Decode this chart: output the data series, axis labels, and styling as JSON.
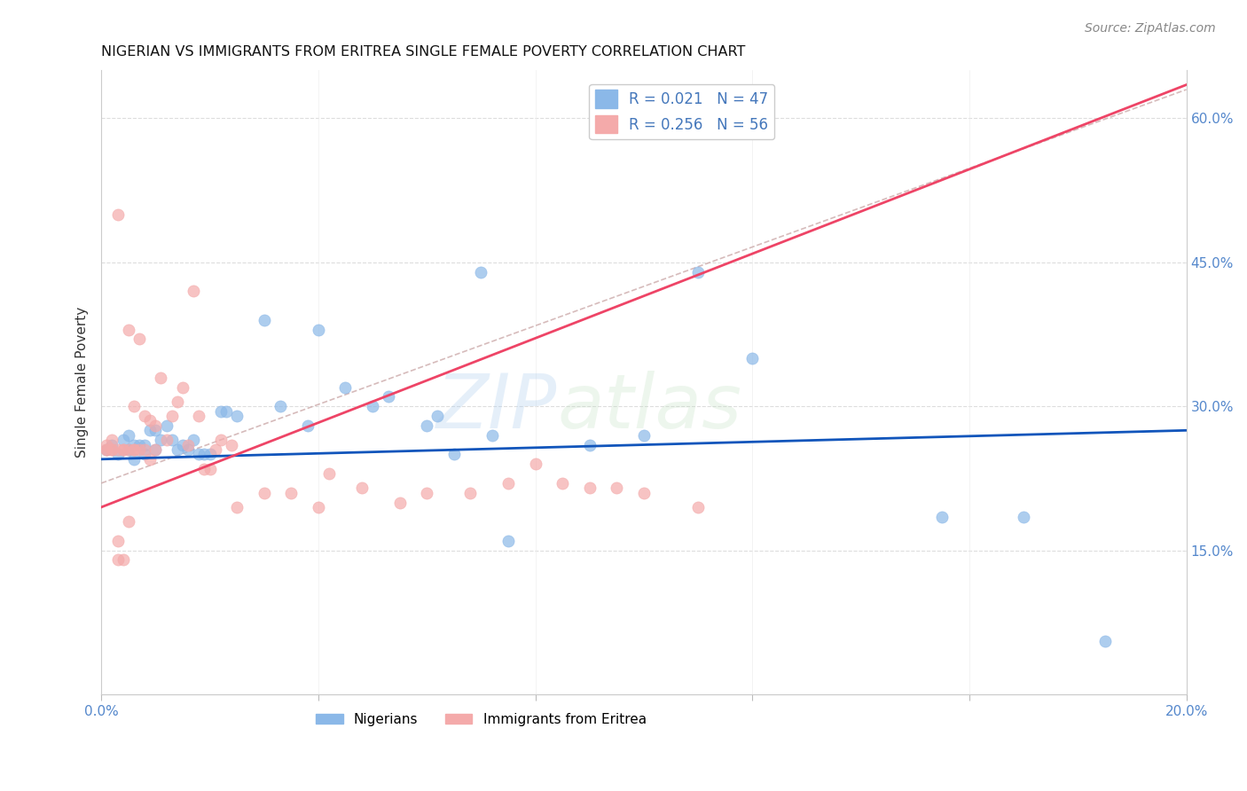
{
  "title": "NIGERIAN VS IMMIGRANTS FROM ERITREA SINGLE FEMALE POVERTY CORRELATION CHART",
  "source": "Source: ZipAtlas.com",
  "ylabel": "Single Female Poverty",
  "xlim": [
    0.0,
    0.2
  ],
  "ylim": [
    0.0,
    0.65
  ],
  "yticks_right": [
    0.15,
    0.3,
    0.45,
    0.6
  ],
  "ytick_labels_right": [
    "15.0%",
    "30.0%",
    "45.0%",
    "60.0%"
  ],
  "nigerian_R": 0.021,
  "nigerian_N": 47,
  "eritrea_R": 0.256,
  "eritrea_N": 56,
  "blue_color": "#8BB8E8",
  "pink_color": "#F4AAAA",
  "blue_line_color": "#1155BB",
  "pink_line_color": "#EE4466",
  "diag_color": "#CCAAAA",
  "watermark_zip": "ZIP",
  "watermark_atlas": "atlas",
  "nigerian_x": [
    0.001,
    0.002,
    0.003,
    0.004,
    0.005,
    0.005,
    0.006,
    0.006,
    0.007,
    0.008,
    0.008,
    0.009,
    0.01,
    0.01,
    0.011,
    0.012,
    0.013,
    0.014,
    0.015,
    0.016,
    0.017,
    0.018,
    0.019,
    0.02,
    0.022,
    0.023,
    0.025,
    0.03,
    0.033,
    0.038,
    0.04,
    0.045,
    0.05,
    0.053,
    0.06,
    0.062,
    0.065,
    0.07,
    0.072,
    0.075,
    0.09,
    0.1,
    0.11,
    0.12,
    0.155,
    0.17,
    0.185
  ],
  "nigerian_y": [
    0.255,
    0.26,
    0.25,
    0.265,
    0.27,
    0.255,
    0.245,
    0.26,
    0.26,
    0.26,
    0.25,
    0.275,
    0.255,
    0.275,
    0.265,
    0.28,
    0.265,
    0.255,
    0.26,
    0.255,
    0.265,
    0.25,
    0.25,
    0.25,
    0.295,
    0.295,
    0.29,
    0.39,
    0.3,
    0.28,
    0.38,
    0.32,
    0.3,
    0.31,
    0.28,
    0.29,
    0.25,
    0.44,
    0.27,
    0.16,
    0.26,
    0.27,
    0.44,
    0.35,
    0.185,
    0.185,
    0.055
  ],
  "eritrea_x": [
    0.001,
    0.001,
    0.001,
    0.002,
    0.002,
    0.002,
    0.003,
    0.003,
    0.003,
    0.003,
    0.004,
    0.004,
    0.004,
    0.005,
    0.005,
    0.005,
    0.006,
    0.006,
    0.006,
    0.007,
    0.007,
    0.008,
    0.008,
    0.009,
    0.009,
    0.01,
    0.01,
    0.011,
    0.012,
    0.013,
    0.014,
    0.015,
    0.016,
    0.017,
    0.018,
    0.019,
    0.02,
    0.021,
    0.022,
    0.024,
    0.025,
    0.03,
    0.035,
    0.04,
    0.042,
    0.048,
    0.055,
    0.06,
    0.068,
    0.075,
    0.08,
    0.085,
    0.09,
    0.095,
    0.1,
    0.11
  ],
  "eritrea_y": [
    0.255,
    0.255,
    0.26,
    0.255,
    0.255,
    0.265,
    0.5,
    0.255,
    0.16,
    0.14,
    0.255,
    0.255,
    0.14,
    0.38,
    0.255,
    0.18,
    0.3,
    0.255,
    0.255,
    0.37,
    0.255,
    0.29,
    0.255,
    0.285,
    0.245,
    0.28,
    0.255,
    0.33,
    0.265,
    0.29,
    0.305,
    0.32,
    0.26,
    0.42,
    0.29,
    0.235,
    0.235,
    0.255,
    0.265,
    0.26,
    0.195,
    0.21,
    0.21,
    0.195,
    0.23,
    0.215,
    0.2,
    0.21,
    0.21,
    0.22,
    0.24,
    0.22,
    0.215,
    0.215,
    0.21,
    0.195
  ]
}
